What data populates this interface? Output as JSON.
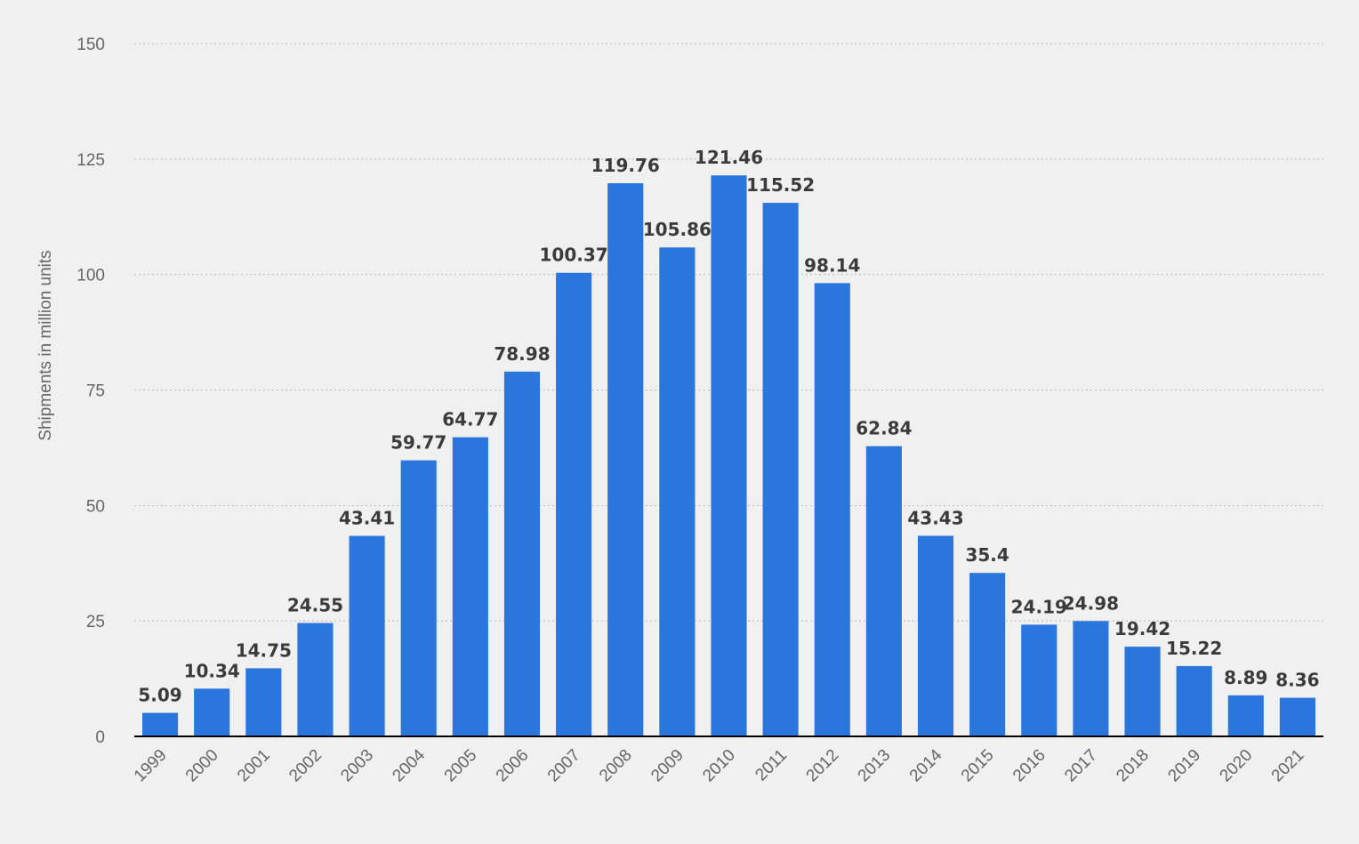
{
  "chart_data": {
    "type": "bar",
    "title": "",
    "xlabel": "",
    "ylabel": "Shipments in million units",
    "ylim": [
      0,
      150
    ],
    "yticks": [
      0,
      25,
      50,
      75,
      100,
      125,
      150
    ],
    "ytick_labels": [
      "0",
      "25",
      "50",
      "75",
      "100",
      "125",
      "150"
    ],
    "grid": true,
    "legend": "none",
    "categories": [
      "1999",
      "2000",
      "2001",
      "2002",
      "2003",
      "2004",
      "2005",
      "2006",
      "2007",
      "2008",
      "2009",
      "2010",
      "2011",
      "2012",
      "2013",
      "2014",
      "2015",
      "2016",
      "2017",
      "2018",
      "2019",
      "2020",
      "2021"
    ],
    "values": [
      5.09,
      10.34,
      14.75,
      24.55,
      43.41,
      59.77,
      64.77,
      78.98,
      100.37,
      119.76,
      105.86,
      121.46,
      115.52,
      98.14,
      62.84,
      43.43,
      35.4,
      24.19,
      24.98,
      19.42,
      15.22,
      8.89,
      8.36
    ],
    "data_labels": [
      "5.09",
      "10.34",
      "14.75",
      "24.55",
      "43.41",
      "59.77",
      "64.77",
      "78.98",
      "100.37",
      "119.76",
      "105.86",
      "121.46",
      "115.52",
      "98.14",
      "62.84",
      "43.43",
      "35.4",
      "24.19",
      "24.98",
      "19.42",
      "15.22",
      "8.89",
      "8.36"
    ],
    "bar_color": "#2a76dd",
    "background_color": "#f0f0f0"
  }
}
